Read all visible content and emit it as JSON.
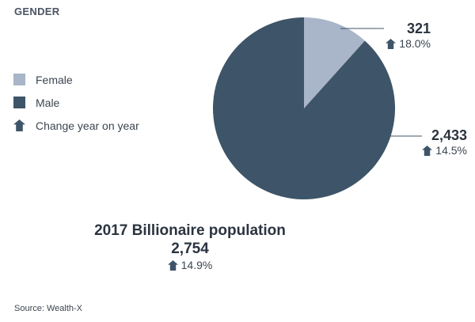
{
  "header": {
    "title": "GENDER"
  },
  "legend": {
    "female": "Female",
    "male": "Male",
    "change": "Change year on year"
  },
  "colors": {
    "female": "#a9b5c8",
    "male": "#3e5468",
    "arrow": "#3e5468",
    "leader": "#3e5468"
  },
  "icons": {
    "change": "up-arrow-house-icon"
  },
  "chart_data": {
    "type": "pie",
    "title": "GENDER",
    "slices": [
      {
        "name": "Female",
        "value": 321,
        "change": "18.0%"
      },
      {
        "name": "Male",
        "value": 2433,
        "change": "14.5%"
      }
    ]
  },
  "callouts": {
    "female_value": "321",
    "female_change": "18.0%",
    "male_value": "2,433",
    "male_change": "14.5%"
  },
  "total": {
    "label": "2017 Billionaire population",
    "value": "2,754",
    "change": "14.9%"
  },
  "footer": {
    "source": "Source: Wealth-X"
  }
}
